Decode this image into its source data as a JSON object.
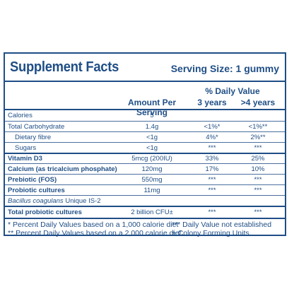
{
  "title": "Supplement Facts",
  "serving_size": "Serving Size: 1 gummy",
  "columns": {
    "amount": "Amount Per Serving",
    "daily_value": "% Daily Value",
    "age1": "3 years",
    "age2": ">4 years"
  },
  "rows": [
    {
      "label": "Calories",
      "amount": "5",
      "dv1": "",
      "dv2": "",
      "bold": false,
      "indent": false
    },
    {
      "label": "Total Carbohydrate",
      "amount": "1.4g",
      "dv1": "<1%*",
      "dv2": "<1%**",
      "bold": false,
      "indent": false
    },
    {
      "label": "Dietary fibre",
      "amount": "<1g",
      "dv1": "4%*",
      "dv2": "2%**",
      "bold": false,
      "indent": true
    },
    {
      "label": "Sugars",
      "amount": "<1g",
      "dv1": "***",
      "dv2": "***",
      "bold": false,
      "indent": true
    },
    {
      "label": "Vitamin D3",
      "amount": "5mcg (200IU)",
      "dv1": "33%",
      "dv2": "25%",
      "bold": true,
      "indent": false
    },
    {
      "label": "Calcium (as tricalcium phosphate)",
      "amount": "120mg",
      "dv1": "17%",
      "dv2": "10%",
      "bold": true,
      "indent": false
    },
    {
      "label": "Prebiotic (FOS)",
      "amount": "550mg",
      "dv1": "***",
      "dv2": "***",
      "bold": true,
      "indent": false
    },
    {
      "label": "Probiotic cultures",
      "amount": "11mg",
      "dv1": "***",
      "dv2": "***",
      "bold": true,
      "indent": false
    },
    {
      "label": "Bacillus coagulans",
      "label_suffix": " Unique IS-2",
      "amount": "",
      "dv1": "",
      "dv2": "",
      "bold": false,
      "indent": false
    },
    {
      "label": "Total probiotic cultures",
      "amount": "2 billion CFU±",
      "dv1": "***",
      "dv2": "***",
      "bold": true,
      "indent": false
    }
  ],
  "footnotes": {
    "f1": "* Percent Daily Values based on a 1,000 calorie diet",
    "f2": "** Percent Daily Values based on a 2,000 calorie diet",
    "f3": "*** Daily Value not established",
    "f4": "± Colony Forming Units"
  },
  "colors": {
    "text": "#1f4e86",
    "background": "#ffffff"
  }
}
